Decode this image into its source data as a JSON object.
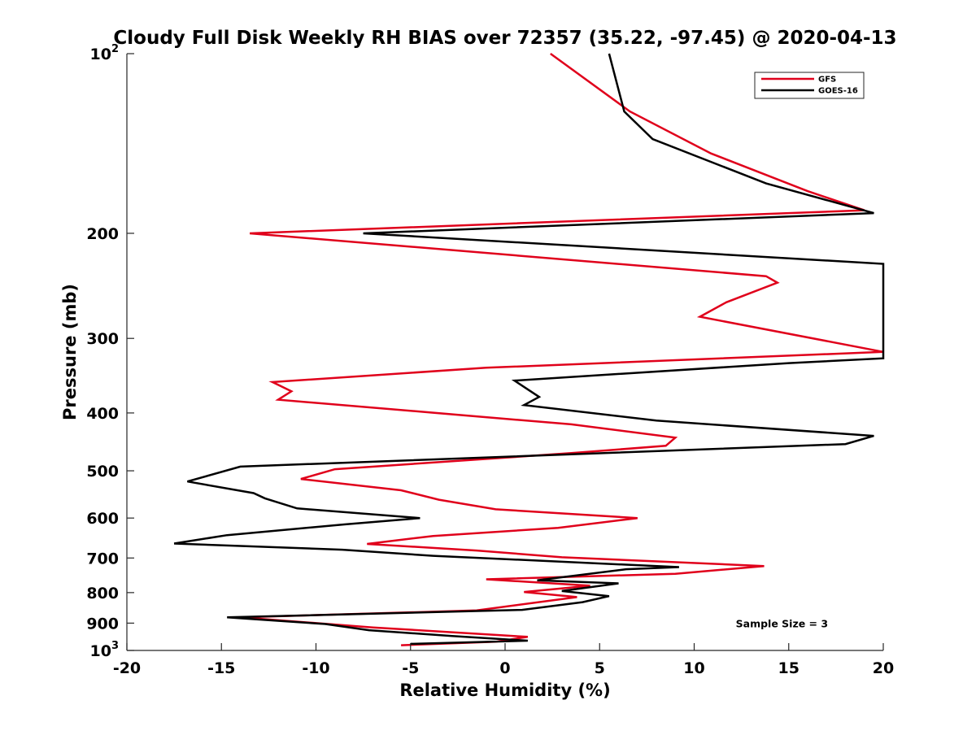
{
  "chart_data": {
    "type": "line",
    "title": "Cloudy Full Disk Weekly RH BIAS over 72357 (35.22, -97.45) @ 2020-04-13",
    "xlabel": "Relative Humidity (%)",
    "ylabel": "Pressure (mb)",
    "xlim": [
      -20,
      20
    ],
    "ylim": [
      100,
      1000
    ],
    "y_scale": "log",
    "y_reversed": true,
    "x_ticks": [
      "-20",
      "-15",
      "-10",
      "-5",
      "0",
      "5",
      "10",
      "15",
      "20"
    ],
    "y_ticks": [
      {
        "value": 100,
        "base": "10",
        "exp": "2"
      },
      {
        "value": 200,
        "label": "200"
      },
      {
        "value": 300,
        "label": "300"
      },
      {
        "value": 400,
        "label": "400"
      },
      {
        "value": 500,
        "label": "500"
      },
      {
        "value": 600,
        "label": "600"
      },
      {
        "value": 700,
        "label": "700"
      },
      {
        "value": 800,
        "label": "800"
      },
      {
        "value": 900,
        "label": "900"
      },
      {
        "value": 1000,
        "base": "10",
        "exp": "3"
      }
    ],
    "legend_position": "top-right",
    "series": [
      {
        "name": "GFS",
        "color": "#e0001b",
        "points": [
          [
            2.4,
            100
          ],
          [
            6.6,
            125
          ],
          [
            10.9,
            147
          ],
          [
            16,
            170
          ],
          [
            19,
            183
          ],
          [
            -13.5,
            200
          ],
          [
            13.8,
            236
          ],
          [
            14.4,
            242
          ],
          [
            11.7,
            261
          ],
          [
            10.3,
            276
          ],
          [
            20,
            316
          ],
          [
            -1,
            336
          ],
          [
            -12.3,
            355
          ],
          [
            -11.3,
            368
          ],
          [
            -12,
            380
          ],
          [
            3.5,
            418
          ],
          [
            9,
            440
          ],
          [
            8.5,
            454
          ],
          [
            3.5,
            467
          ],
          [
            -9,
            497
          ],
          [
            -10.8,
            516
          ],
          [
            -5.5,
            539
          ],
          [
            -3.5,
            559
          ],
          [
            -0.5,
            580
          ],
          [
            7,
            600
          ],
          [
            2.8,
            623
          ],
          [
            -3.8,
            643
          ],
          [
            -7.3,
            663
          ],
          [
            -1.5,
            680
          ],
          [
            3,
            698
          ],
          [
            13.7,
            722
          ],
          [
            9,
            744
          ],
          [
            -1,
            760
          ],
          [
            4.5,
            779
          ],
          [
            1,
            798
          ],
          [
            3.8,
            814
          ],
          [
            -1.5,
            857
          ],
          [
            -14,
            880
          ],
          [
            -7,
            915
          ],
          [
            1.2,
            949
          ],
          [
            -0.5,
            967
          ],
          [
            -5.5,
            980
          ]
        ]
      },
      {
        "name": "GOES-16",
        "color": "#000000",
        "points": [
          [
            5.5,
            100
          ],
          [
            6.3,
            125
          ],
          [
            7.8,
            139
          ],
          [
            13.8,
            165
          ],
          [
            19.5,
            185
          ],
          [
            -7.5,
            200
          ],
          [
            20,
            225
          ],
          [
            20,
            324
          ],
          [
            15,
            330
          ],
          [
            0.5,
            353
          ],
          [
            1.8,
            376
          ],
          [
            1,
            388
          ],
          [
            8,
            412
          ],
          [
            19.5,
            437
          ],
          [
            18,
            451
          ],
          [
            -14,
            492
          ],
          [
            -16.8,
            521
          ],
          [
            -13.3,
            545
          ],
          [
            -12.7,
            556
          ],
          [
            -11,
            578
          ],
          [
            -4.5,
            600
          ],
          [
            -8.5,
            615
          ],
          [
            -14.7,
            641
          ],
          [
            -17.5,
            662
          ],
          [
            -8.6,
            678
          ],
          [
            -3.8,
            694
          ],
          [
            9.2,
            725
          ],
          [
            6.4,
            731
          ],
          [
            1.7,
            763
          ],
          [
            6,
            772
          ],
          [
            3,
            795
          ],
          [
            5.5,
            811
          ],
          [
            4.1,
            830
          ],
          [
            0.9,
            855
          ],
          [
            -14.7,
            880
          ],
          [
            -9.5,
            903
          ],
          [
            -7.2,
            925
          ],
          [
            -2.8,
            946
          ],
          [
            1.2,
            963
          ],
          [
            -5,
            975
          ]
        ]
      }
    ],
    "annotations": [
      {
        "text": "Sample Size = 3",
        "x": 12.2,
        "y": 900
      }
    ]
  }
}
